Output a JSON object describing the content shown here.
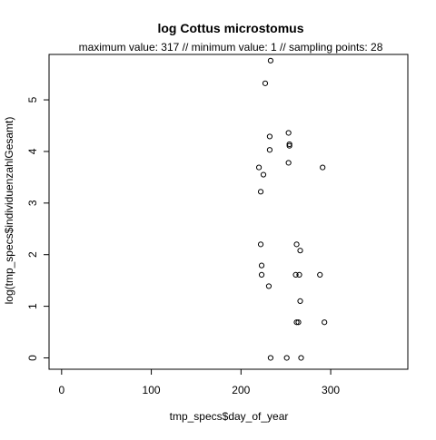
{
  "chart_data": {
    "type": "scatter",
    "title": "log Cottus microstomus",
    "subtitle": "maximum value: 317  //  minimum value: 1  // sampling points: 28",
    "xlabel": "tmp_specs$day_of_year",
    "ylabel": "log(tmp_specs$individuenzahlGesamt)",
    "xlim": [
      -14,
      386
    ],
    "ylim": [
      -0.22,
      5.88
    ],
    "x_ticks": [
      0,
      100,
      200,
      300
    ],
    "y_ticks": [
      0,
      1,
      2,
      3,
      4,
      5
    ],
    "grid": false,
    "legend": "none",
    "marker": "open-circle",
    "colors": {
      "points": "#000000",
      "frame": "#000000",
      "background": "#ffffff"
    },
    "points": [
      {
        "x": 233,
        "y": 5.76
      },
      {
        "x": 227,
        "y": 5.32
      },
      {
        "x": 253,
        "y": 4.36
      },
      {
        "x": 232,
        "y": 4.29
      },
      {
        "x": 254,
        "y": 4.14
      },
      {
        "x": 254,
        "y": 4.11
      },
      {
        "x": 232,
        "y": 4.03
      },
      {
        "x": 253,
        "y": 3.78
      },
      {
        "x": 220,
        "y": 3.69
      },
      {
        "x": 291,
        "y": 3.69
      },
      {
        "x": 225,
        "y": 3.55
      },
      {
        "x": 222,
        "y": 3.22
      },
      {
        "x": 222,
        "y": 2.2
      },
      {
        "x": 262,
        "y": 2.2
      },
      {
        "x": 266,
        "y": 2.08
      },
      {
        "x": 223,
        "y": 1.79
      },
      {
        "x": 223,
        "y": 1.61
      },
      {
        "x": 261,
        "y": 1.61
      },
      {
        "x": 265,
        "y": 1.61
      },
      {
        "x": 288,
        "y": 1.61
      },
      {
        "x": 231,
        "y": 1.39
      },
      {
        "x": 266,
        "y": 1.1
      },
      {
        "x": 262,
        "y": 0.69
      },
      {
        "x": 264,
        "y": 0.69
      },
      {
        "x": 293,
        "y": 0.69
      },
      {
        "x": 233,
        "y": 0.0
      },
      {
        "x": 251,
        "y": 0.0
      },
      {
        "x": 267,
        "y": 0.0
      }
    ]
  }
}
